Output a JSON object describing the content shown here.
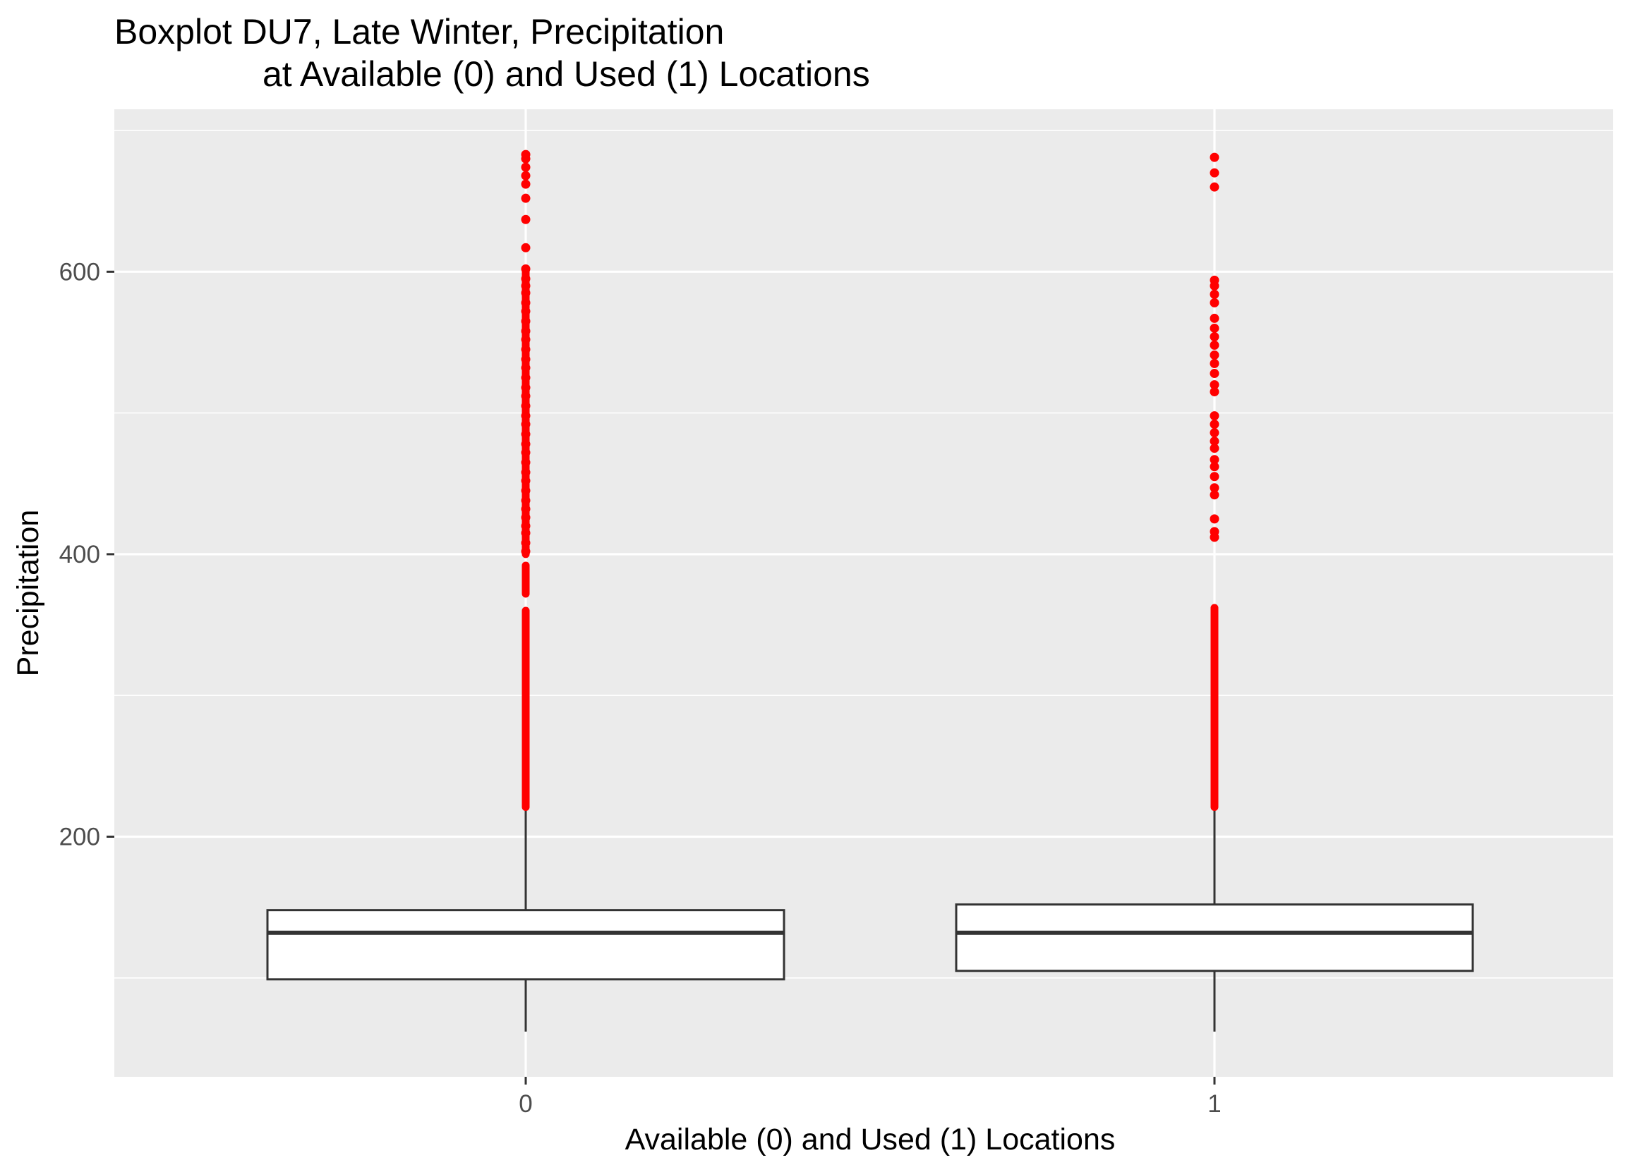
{
  "chart_data": {
    "type": "boxplot",
    "title_line1": "Boxplot DU7, Late Winter, Precipitation",
    "title_line2": "at Available (0) and Used (1) Locations",
    "xlabel": "Available (0) and Used (1) Locations",
    "ylabel": "Precipitation",
    "categories": [
      "0",
      "1"
    ],
    "ylim": [
      30,
      715
    ],
    "yticks": [
      200,
      400,
      600
    ],
    "ytick_labels": [
      "200",
      "400",
      "600"
    ],
    "yminor": [
      100,
      300,
      500,
      700
    ],
    "grid": true,
    "legend": "none",
    "colors": {
      "panel": "#ebebeb",
      "grid": "#ffffff",
      "box_fill": "#ffffff",
      "box_stroke": "#333333",
      "outlier": "#ff0000"
    },
    "boxes": [
      {
        "category": "0",
        "whisker_low": 62,
        "q1": 99,
        "median": 132,
        "q3": 148,
        "whisker_high": 221,
        "outlier_clusters": [
          [
            221,
            360
          ],
          [
            372,
            392
          ],
          [
            400,
            600
          ]
        ],
        "outliers": [
          402,
          408,
          415,
          420,
          426,
          432,
          438,
          445,
          452,
          458,
          465,
          472,
          478,
          485,
          492,
          498,
          505,
          512,
          518,
          525,
          532,
          538,
          545,
          552,
          558,
          565,
          572,
          578,
          585,
          590,
          595,
          602,
          617,
          637,
          652,
          662,
          668,
          674,
          680,
          683
        ]
      },
      {
        "category": "1",
        "whisker_low": 62,
        "q1": 105,
        "median": 132,
        "q3": 152,
        "whisker_high": 221,
        "outlier_clusters": [
          [
            221,
            362
          ]
        ],
        "outliers": [
          412,
          416,
          425,
          442,
          447,
          455,
          462,
          467,
          475,
          480,
          486,
          492,
          498,
          515,
          520,
          528,
          535,
          541,
          548,
          554,
          560,
          567,
          578,
          584,
          590,
          594,
          660,
          670,
          681
        ]
      }
    ]
  }
}
